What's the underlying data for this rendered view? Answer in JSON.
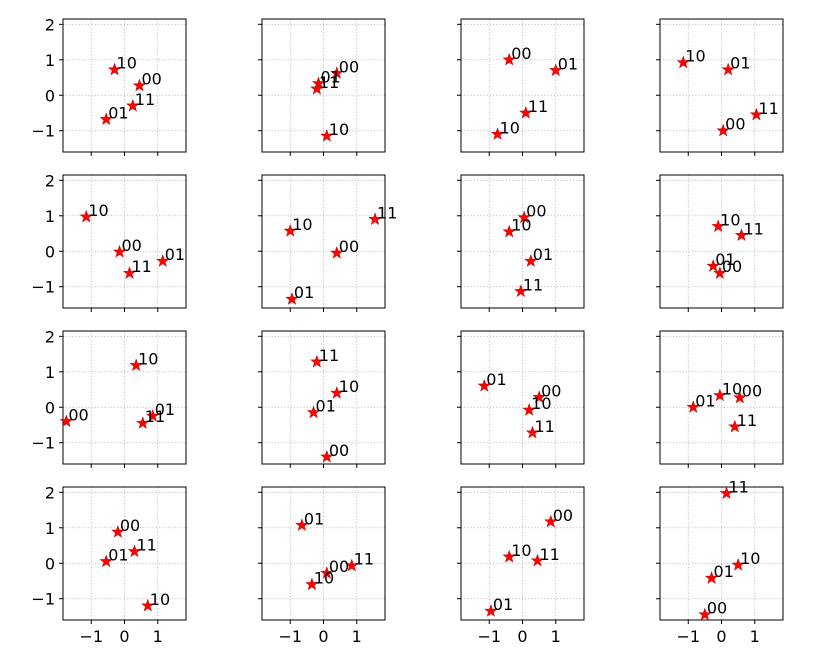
{
  "figure": {
    "grid_rows": 4,
    "grid_cols": 4,
    "sharex": true,
    "sharey": true
  },
  "colors": {
    "marker": "#ff0000",
    "marker_edge": "#b00000",
    "grid": "#b0b0b0",
    "axes": "#000000",
    "text": "#000000"
  },
  "axes_common": {
    "xlim": [
      -1.85,
      1.85
    ],
    "ylim": [
      -1.6,
      2.15
    ],
    "xticks": [
      -1,
      0,
      1
    ],
    "xtick_labels": [
      "−1",
      "0",
      "1"
    ],
    "yticks": [
      -1,
      0,
      1,
      2
    ],
    "ytick_labels": [
      "−1",
      "0",
      "1",
      "2"
    ],
    "grid": true,
    "grid_style": "dotted",
    "marker": "star"
  },
  "chart_data": [
    {
      "type": "scatter",
      "points": [
        {
          "label": "10",
          "x": -0.3,
          "y": 0.72
        },
        {
          "label": "00",
          "x": 0.45,
          "y": 0.27
        },
        {
          "label": "11",
          "x": 0.25,
          "y": -0.3
        },
        {
          "label": "01",
          "x": -0.55,
          "y": -0.68
        }
      ]
    },
    {
      "type": "scatter",
      "points": [
        {
          "label": "00",
          "x": 0.4,
          "y": 0.62
        },
        {
          "label": "01",
          "x": -0.15,
          "y": 0.33
        },
        {
          "label": "11",
          "x": -0.2,
          "y": 0.18
        },
        {
          "label": "10",
          "x": 0.1,
          "y": -1.15
        }
      ]
    },
    {
      "type": "scatter",
      "points": [
        {
          "label": "00",
          "x": -0.4,
          "y": 1.0
        },
        {
          "label": "01",
          "x": 1.0,
          "y": 0.7
        },
        {
          "label": "11",
          "x": 0.1,
          "y": -0.5
        },
        {
          "label": "10",
          "x": -0.75,
          "y": -1.1
        }
      ]
    },
    {
      "type": "scatter",
      "points": [
        {
          "label": "10",
          "x": -1.15,
          "y": 0.92
        },
        {
          "label": "01",
          "x": 0.2,
          "y": 0.72
        },
        {
          "label": "11",
          "x": 1.05,
          "y": -0.55
        },
        {
          "label": "00",
          "x": 0.05,
          "y": -1.0
        }
      ]
    },
    {
      "type": "scatter",
      "points": [
        {
          "label": "10",
          "x": -1.15,
          "y": 0.97
        },
        {
          "label": "00",
          "x": -0.15,
          "y": -0.02
        },
        {
          "label": "01",
          "x": 1.15,
          "y": -0.28
        },
        {
          "label": "11",
          "x": 0.15,
          "y": -0.62
        }
      ]
    },
    {
      "type": "scatter",
      "points": [
        {
          "label": "11",
          "x": 1.55,
          "y": 0.9
        },
        {
          "label": "10",
          "x": -1.0,
          "y": 0.57
        },
        {
          "label": "00",
          "x": 0.4,
          "y": -0.05
        },
        {
          "label": "01",
          "x": -0.95,
          "y": -1.35
        }
      ]
    },
    {
      "type": "scatter",
      "points": [
        {
          "label": "00",
          "x": 0.05,
          "y": 0.95
        },
        {
          "label": "10",
          "x": -0.4,
          "y": 0.55
        },
        {
          "label": "01",
          "x": 0.25,
          "y": -0.28
        },
        {
          "label": "11",
          "x": -0.05,
          "y": -1.13
        }
      ]
    },
    {
      "type": "scatter",
      "points": [
        {
          "label": "10",
          "x": -0.1,
          "y": 0.7
        },
        {
          "label": "11",
          "x": 0.6,
          "y": 0.45
        },
        {
          "label": "01",
          "x": -0.25,
          "y": -0.42
        },
        {
          "label": "00",
          "x": -0.05,
          "y": -0.62
        }
      ]
    },
    {
      "type": "scatter",
      "points": [
        {
          "label": "10",
          "x": 0.35,
          "y": 1.18
        },
        {
          "label": "01",
          "x": 0.85,
          "y": -0.25
        },
        {
          "label": "11",
          "x": 0.55,
          "y": -0.45
        },
        {
          "label": "00",
          "x": -1.75,
          "y": -0.4
        }
      ]
    },
    {
      "type": "scatter",
      "points": [
        {
          "label": "11",
          "x": -0.2,
          "y": 1.28
        },
        {
          "label": "10",
          "x": 0.4,
          "y": 0.4
        },
        {
          "label": "01",
          "x": -0.3,
          "y": -0.15
        },
        {
          "label": "00",
          "x": 0.1,
          "y": -1.4
        }
      ]
    },
    {
      "type": "scatter",
      "points": [
        {
          "label": "01",
          "x": -1.15,
          "y": 0.6
        },
        {
          "label": "00",
          "x": 0.5,
          "y": 0.28
        },
        {
          "label": "10",
          "x": 0.2,
          "y": -0.08
        },
        {
          "label": "11",
          "x": 0.3,
          "y": -0.72
        }
      ]
    },
    {
      "type": "scatter",
      "points": [
        {
          "label": "10",
          "x": -0.05,
          "y": 0.33
        },
        {
          "label": "00",
          "x": 0.55,
          "y": 0.27
        },
        {
          "label": "01",
          "x": -0.85,
          "y": 0.0
        },
        {
          "label": "11",
          "x": 0.4,
          "y": -0.55
        }
      ]
    },
    {
      "type": "scatter",
      "points": [
        {
          "label": "00",
          "x": -0.2,
          "y": 0.88
        },
        {
          "label": "11",
          "x": 0.3,
          "y": 0.33
        },
        {
          "label": "01",
          "x": -0.55,
          "y": 0.05
        },
        {
          "label": "10",
          "x": 0.7,
          "y": -1.2
        }
      ]
    },
    {
      "type": "scatter",
      "points": [
        {
          "label": "01",
          "x": -0.65,
          "y": 1.07
        },
        {
          "label": "11",
          "x": 0.85,
          "y": -0.07
        },
        {
          "label": "00",
          "x": 0.1,
          "y": -0.28
        },
        {
          "label": "10",
          "x": -0.35,
          "y": -0.6
        }
      ]
    },
    {
      "type": "scatter",
      "points": [
        {
          "label": "00",
          "x": 0.85,
          "y": 1.17
        },
        {
          "label": "10",
          "x": -0.4,
          "y": 0.18
        },
        {
          "label": "11",
          "x": 0.45,
          "y": 0.07
        },
        {
          "label": "01",
          "x": -0.95,
          "y": -1.35
        }
      ]
    },
    {
      "type": "scatter",
      "points": [
        {
          "label": "11",
          "x": 0.15,
          "y": 1.97
        },
        {
          "label": "10",
          "x": 0.5,
          "y": -0.05
        },
        {
          "label": "01",
          "x": -0.3,
          "y": -0.42
        },
        {
          "label": "00",
          "x": -0.5,
          "y": -1.45
        }
      ]
    }
  ]
}
